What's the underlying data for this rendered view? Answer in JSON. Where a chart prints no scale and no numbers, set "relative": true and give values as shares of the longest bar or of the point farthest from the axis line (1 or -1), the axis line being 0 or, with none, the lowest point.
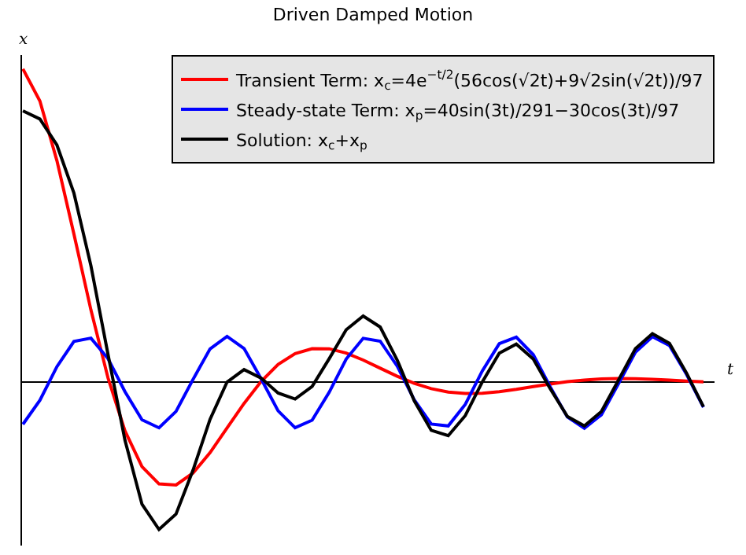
{
  "chart_data": {
    "type": "line",
    "title": "Driven Damped Motion",
    "xlabel": "t",
    "ylabel": "x",
    "relative": true,
    "grid": false,
    "legend": "top right",
    "marker": "none",
    "line_style": "solid",
    "categories": [
      null,
      null,
      null,
      null,
      null,
      null,
      null,
      null,
      null,
      null,
      null,
      null,
      null,
      null,
      null,
      null,
      null,
      null,
      null,
      null,
      null,
      null,
      null,
      null,
      null,
      null,
      null,
      null,
      null,
      null,
      null,
      null,
      null,
      null,
      null,
      null,
      null,
      null,
      null,
      null,
      null
    ],
    "series": [
      {
        "name": "Transient Term: x$_{c}$=4e$^{−t/2}$(56cos(√2t)+9√2sin(√2t))/97",
        "color": "#ff0000",
        "values": [
          1.0,
          0.8974,
          0.7071,
          0.473,
          0.2307,
          0.0145,
          -0.1551,
          -0.2692,
          -0.3242,
          -0.3274,
          -0.2895,
          -0.2246,
          -0.1458,
          -0.0674,
          0.0024,
          0.0569,
          0.0917,
          0.1075,
          0.107,
          0.0933,
          0.0711,
          0.0451,
          0.0193,
          -0.0031,
          -0.0202,
          -0.031,
          -0.0357,
          -0.0349,
          -0.03,
          -0.0225,
          -0.0138,
          -0.0055,
          0.0018,
          0.0072,
          0.0106,
          0.0118,
          0.0114,
          0.0096,
          0.0071,
          0.0042,
          0.0015
        ]
      },
      {
        "name": "Steady-state Term: x$_{p}$=40sin(3t)/291−30cos(3t)/97",
        "color": "#0000ff",
        "values": [
          -0.1339,
          -0.0574,
          0.0499,
          0.1305,
          0.141,
          0.0759,
          -0.03,
          -0.1197,
          -0.1452,
          -0.0928,
          0.0094,
          0.1066,
          0.1465,
          0.108,
          0.0113,
          -0.0911,
          -0.1449,
          -0.1208,
          -0.0319,
          0.0742,
          0.1404,
          0.1313,
          0.0517,
          -0.0557,
          -0.1331,
          -0.1392,
          -0.0706,
          0.036,
          0.1232,
          0.1443,
          0.088,
          -0.0154,
          -0.1107,
          -0.1464,
          -0.1036,
          -0.0052,
          0.096,
          0.1457,
          0.1173,
          0.0258,
          -0.0795
        ]
      },
      {
        "name": "Solution: x$_{c}$+x$_{p}$",
        "color": "#000000",
        "values": [
          0.8661,
          0.84,
          0.757,
          0.6035,
          0.3717,
          0.0904,
          -0.1851,
          -0.3889,
          -0.4694,
          -0.4202,
          -0.2801,
          -0.118,
          0.0007,
          0.0406,
          0.0137,
          -0.0342,
          -0.0532,
          -0.0133,
          0.0751,
          0.1675,
          0.2115,
          0.1764,
          0.071,
          -0.0588,
          -0.1533,
          -0.1702,
          -0.1063,
          0.0011,
          0.0932,
          0.1218,
          0.0742,
          -0.0209,
          -0.1089,
          -0.1392,
          -0.093,
          0.0066,
          0.1074,
          0.1553,
          0.1244,
          0.03,
          -0.078
        ]
      }
    ]
  }
}
